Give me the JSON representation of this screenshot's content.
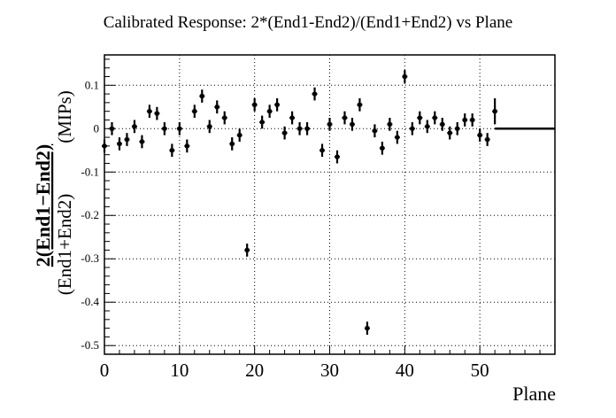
{
  "chart_data": {
    "type": "scatter",
    "title": "Calibrated Response: 2*(End1-End2)/(End1+End2) vs Plane",
    "xlabel": "Plane",
    "ylabel": {
      "numerator": "2(End1−End2)",
      "denominator": "(End1+End2)",
      "unit": "(MIPs)"
    },
    "xlim": [
      0,
      60
    ],
    "ylim": [
      -0.52,
      0.17
    ],
    "grid": true,
    "x_ticks": [
      {
        "value": 0,
        "label": "0"
      },
      {
        "value": 10,
        "label": "10"
      },
      {
        "value": 20,
        "label": "20"
      },
      {
        "value": 30,
        "label": "30"
      },
      {
        "value": 40,
        "label": "40"
      },
      {
        "value": 50,
        "label": "50"
      }
    ],
    "y_ticks": [
      {
        "value": 0.1,
        "label": "0.1"
      },
      {
        "value": 0,
        "label": "0"
      },
      {
        "value": -0.1,
        "label": "-0.1"
      },
      {
        "value": -0.2,
        "label": "-0.2"
      },
      {
        "value": -0.3,
        "label": "-0.3"
      },
      {
        "value": -0.4,
        "label": "-0.4"
      },
      {
        "value": -0.5,
        "label": "-0.5"
      }
    ],
    "series": [
      {
        "points": [
          {
            "x": 0,
            "y": -0.04,
            "err": 0.015
          },
          {
            "x": 1,
            "y": 0.0,
            "err": 0.015
          },
          {
            "x": 2,
            "y": -0.035,
            "err": 0.015
          },
          {
            "x": 3,
            "y": -0.025,
            "err": 0.015
          },
          {
            "x": 4,
            "y": 0.005,
            "err": 0.015
          },
          {
            "x": 5,
            "y": -0.03,
            "err": 0.015
          },
          {
            "x": 6,
            "y": 0.04,
            "err": 0.015
          },
          {
            "x": 7,
            "y": 0.035,
            "err": 0.015
          },
          {
            "x": 8,
            "y": 0.0,
            "err": 0.015
          },
          {
            "x": 9,
            "y": -0.05,
            "err": 0.015
          },
          {
            "x": 10,
            "y": 0.0,
            "err": 0.015
          },
          {
            "x": 11,
            "y": -0.04,
            "err": 0.015
          },
          {
            "x": 12,
            "y": 0.04,
            "err": 0.015
          },
          {
            "x": 13,
            "y": 0.075,
            "err": 0.015
          },
          {
            "x": 14,
            "y": 0.005,
            "err": 0.015
          },
          {
            "x": 15,
            "y": 0.05,
            "err": 0.015
          },
          {
            "x": 16,
            "y": 0.025,
            "err": 0.015
          },
          {
            "x": 17,
            "y": -0.035,
            "err": 0.015
          },
          {
            "x": 18,
            "y": -0.015,
            "err": 0.015
          },
          {
            "x": 19,
            "y": -0.28,
            "err": 0.015
          },
          {
            "x": 20,
            "y": 0.055,
            "err": 0.015
          },
          {
            "x": 21,
            "y": 0.015,
            "err": 0.015
          },
          {
            "x": 22,
            "y": 0.04,
            "err": 0.015
          },
          {
            "x": 23,
            "y": 0.055,
            "err": 0.015
          },
          {
            "x": 24,
            "y": -0.01,
            "err": 0.015
          },
          {
            "x": 25,
            "y": 0.025,
            "err": 0.015
          },
          {
            "x": 26,
            "y": 0.0,
            "err": 0.015
          },
          {
            "x": 27,
            "y": 0.0,
            "err": 0.015
          },
          {
            "x": 28,
            "y": 0.08,
            "err": 0.015
          },
          {
            "x": 29,
            "y": -0.05,
            "err": 0.015
          },
          {
            "x": 30,
            "y": 0.01,
            "err": 0.015
          },
          {
            "x": 31,
            "y": -0.065,
            "err": 0.015
          },
          {
            "x": 32,
            "y": 0.025,
            "err": 0.015
          },
          {
            "x": 33,
            "y": 0.01,
            "err": 0.015
          },
          {
            "x": 34,
            "y": 0.055,
            "err": 0.015
          },
          {
            "x": 35,
            "y": -0.46,
            "err": 0.015
          },
          {
            "x": 36,
            "y": -0.005,
            "err": 0.015
          },
          {
            "x": 37,
            "y": -0.045,
            "err": 0.015
          },
          {
            "x": 38,
            "y": 0.01,
            "err": 0.015
          },
          {
            "x": 39,
            "y": -0.02,
            "err": 0.015
          },
          {
            "x": 40,
            "y": 0.12,
            "err": 0.015
          },
          {
            "x": 41,
            "y": 0.0,
            "err": 0.015
          },
          {
            "x": 42,
            "y": 0.025,
            "err": 0.015
          },
          {
            "x": 43,
            "y": 0.005,
            "err": 0.015
          },
          {
            "x": 44,
            "y": 0.025,
            "err": 0.015
          },
          {
            "x": 45,
            "y": 0.01,
            "err": 0.015
          },
          {
            "x": 46,
            "y": -0.01,
            "err": 0.015
          },
          {
            "x": 47,
            "y": 0.0,
            "err": 0.015
          },
          {
            "x": 48,
            "y": 0.02,
            "err": 0.015
          },
          {
            "x": 49,
            "y": 0.02,
            "err": 0.015
          },
          {
            "x": 50,
            "y": -0.015,
            "err": 0.015
          },
          {
            "x": 51,
            "y": -0.025,
            "err": 0.015
          },
          {
            "x": 52,
            "y": 0.04,
            "err": 0.03
          }
        ],
        "flat_line": {
          "x_from": 52,
          "x_to": 60,
          "y": 0
        }
      }
    ]
  }
}
